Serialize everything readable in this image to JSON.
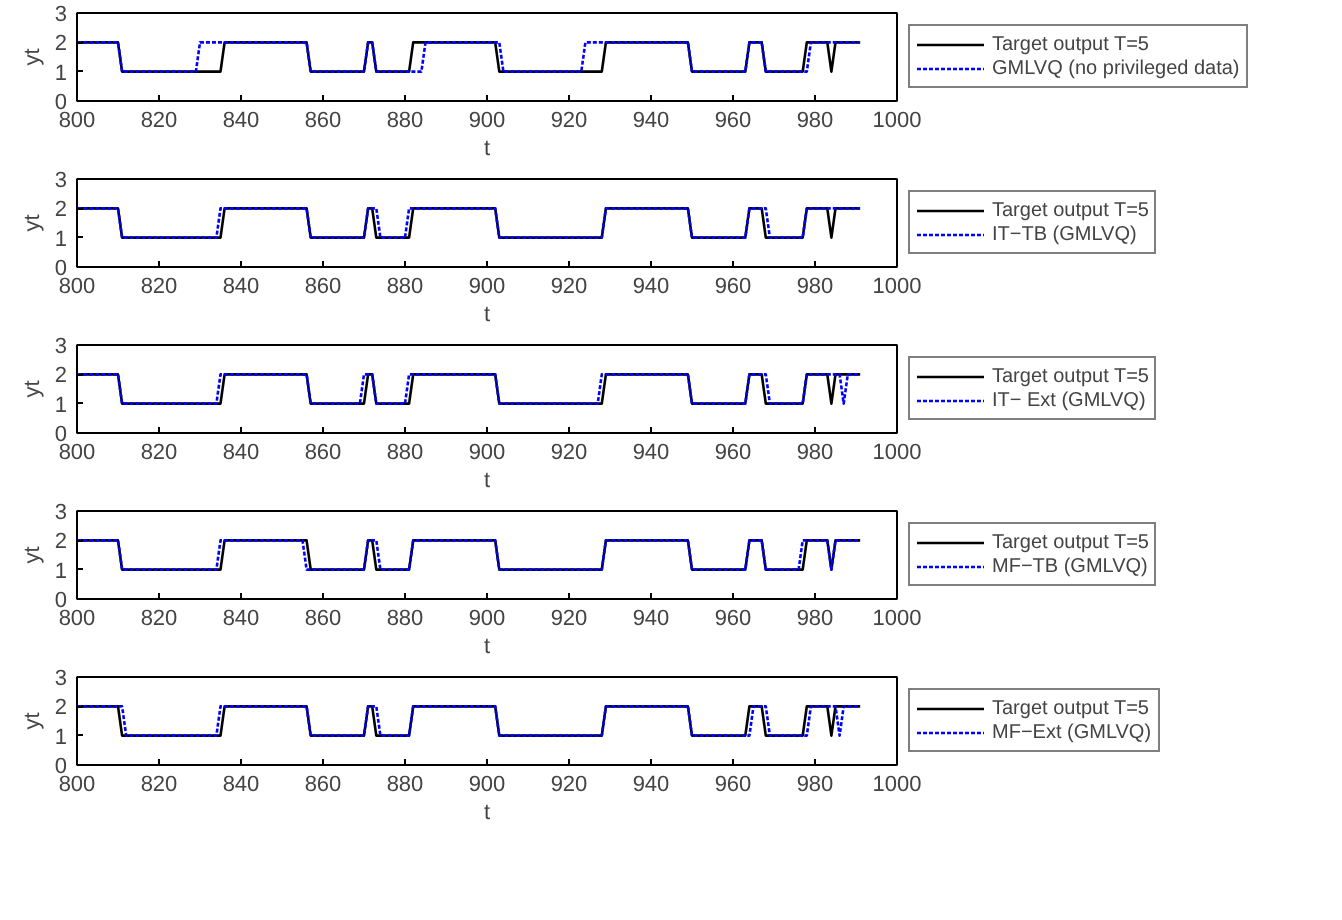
{
  "chart_data": [
    {
      "type": "line",
      "xlabel": "t",
      "ylabel": "yt",
      "xlim": [
        800,
        1000
      ],
      "xticks": [
        800,
        820,
        840,
        860,
        880,
        900,
        920,
        940,
        960,
        980,
        1000
      ],
      "ylim": [
        0,
        3
      ],
      "yticks": [
        0,
        1,
        2,
        3
      ],
      "grid": false,
      "legend": "right",
      "series": [
        {
          "name": "Target output T=5",
          "color": "#000000",
          "line_style": "solid",
          "x": [
            800,
            810,
            811,
            835,
            836,
            856,
            857,
            870,
            871,
            872,
            873,
            881,
            882,
            902,
            903,
            928,
            929,
            949,
            950,
            963,
            964,
            967,
            968,
            977,
            978,
            983,
            984,
            985,
            991
          ],
          "values": [
            2,
            2,
            1,
            1,
            2,
            2,
            1,
            1,
            2,
            2,
            1,
            1,
            2,
            2,
            1,
            1,
            2,
            2,
            1,
            1,
            2,
            2,
            1,
            1,
            2,
            2,
            1,
            2,
            2
          ]
        },
        {
          "name": "GMLVQ (no privileged data)",
          "color": "#0000ff",
          "line_style": "dotted",
          "x": [
            800,
            810,
            811,
            829,
            830,
            856,
            857,
            870,
            871,
            872,
            873,
            884,
            885,
            903,
            904,
            923,
            924,
            949,
            950,
            963,
            964,
            967,
            968,
            978,
            979,
            991
          ],
          "values": [
            2,
            2,
            1,
            1,
            2,
            2,
            1,
            1,
            2,
            2,
            1,
            1,
            2,
            2,
            1,
            1,
            2,
            2,
            1,
            1,
            2,
            2,
            1,
            1,
            2,
            2
          ]
        }
      ]
    },
    {
      "type": "line",
      "xlabel": "t",
      "ylabel": "yt",
      "xlim": [
        800,
        1000
      ],
      "xticks": [
        800,
        820,
        840,
        860,
        880,
        900,
        920,
        940,
        960,
        980,
        1000
      ],
      "ylim": [
        0,
        3
      ],
      "yticks": [
        0,
        1,
        2,
        3
      ],
      "grid": false,
      "legend": "right",
      "series": [
        {
          "name": "Target output T=5",
          "color": "#000000",
          "line_style": "solid",
          "x": [
            800,
            810,
            811,
            835,
            836,
            856,
            857,
            870,
            871,
            872,
            873,
            881,
            882,
            902,
            903,
            928,
            929,
            949,
            950,
            963,
            964,
            967,
            968,
            977,
            978,
            983,
            984,
            985,
            991
          ],
          "values": [
            2,
            2,
            1,
            1,
            2,
            2,
            1,
            1,
            2,
            2,
            1,
            1,
            2,
            2,
            1,
            1,
            2,
            2,
            1,
            1,
            2,
            2,
            1,
            1,
            2,
            2,
            1,
            2,
            2
          ]
        },
        {
          "name": "IT−TB (GMLVQ)",
          "color": "#0000ff",
          "line_style": "dotted",
          "x": [
            800,
            810,
            811,
            834,
            835,
            856,
            857,
            870,
            871,
            873,
            874,
            880,
            881,
            902,
            903,
            928,
            929,
            949,
            950,
            963,
            964,
            968,
            969,
            977,
            978,
            991
          ],
          "values": [
            2,
            2,
            1,
            1,
            2,
            2,
            1,
            1,
            2,
            2,
            1,
            1,
            2,
            2,
            1,
            1,
            2,
            2,
            1,
            1,
            2,
            2,
            1,
            1,
            2,
            2
          ]
        }
      ]
    },
    {
      "type": "line",
      "xlabel": "t",
      "ylabel": "yt",
      "xlim": [
        800,
        1000
      ],
      "xticks": [
        800,
        820,
        840,
        860,
        880,
        900,
        920,
        940,
        960,
        980,
        1000
      ],
      "ylim": [
        0,
        3
      ],
      "yticks": [
        0,
        1,
        2,
        3
      ],
      "grid": false,
      "legend": "right",
      "series": [
        {
          "name": "Target output T=5",
          "color": "#000000",
          "line_style": "solid",
          "x": [
            800,
            810,
            811,
            835,
            836,
            856,
            857,
            870,
            871,
            872,
            873,
            881,
            882,
            902,
            903,
            928,
            929,
            949,
            950,
            963,
            964,
            967,
            968,
            977,
            978,
            983,
            984,
            985,
            991
          ],
          "values": [
            2,
            2,
            1,
            1,
            2,
            2,
            1,
            1,
            2,
            2,
            1,
            1,
            2,
            2,
            1,
            1,
            2,
            2,
            1,
            1,
            2,
            2,
            1,
            1,
            2,
            2,
            1,
            2,
            2
          ]
        },
        {
          "name": "IT− Ext (GMLVQ)",
          "color": "#0000ff",
          "line_style": "dotted",
          "x": [
            800,
            810,
            811,
            834,
            835,
            856,
            857,
            869,
            870,
            872,
            873,
            880,
            881,
            902,
            903,
            927,
            928,
            949,
            950,
            963,
            964,
            968,
            969,
            977,
            978,
            986,
            987,
            988,
            991
          ],
          "values": [
            2,
            2,
            1,
            1,
            2,
            2,
            1,
            1,
            2,
            2,
            1,
            1,
            2,
            2,
            1,
            1,
            2,
            2,
            1,
            1,
            2,
            2,
            1,
            1,
            2,
            2,
            1,
            2,
            2
          ]
        }
      ]
    },
    {
      "type": "line",
      "xlabel": "t",
      "ylabel": "yt",
      "xlim": [
        800,
        1000
      ],
      "xticks": [
        800,
        820,
        840,
        860,
        880,
        900,
        920,
        940,
        960,
        980,
        1000
      ],
      "ylim": [
        0,
        3
      ],
      "yticks": [
        0,
        1,
        2,
        3
      ],
      "grid": false,
      "legend": "right",
      "series": [
        {
          "name": "Target output T=5",
          "color": "#000000",
          "line_style": "solid",
          "x": [
            800,
            810,
            811,
            835,
            836,
            856,
            857,
            870,
            871,
            872,
            873,
            881,
            882,
            902,
            903,
            928,
            929,
            949,
            950,
            963,
            964,
            967,
            968,
            977,
            978,
            983,
            984,
            985,
            991
          ],
          "values": [
            2,
            2,
            1,
            1,
            2,
            2,
            1,
            1,
            2,
            2,
            1,
            1,
            2,
            2,
            1,
            1,
            2,
            2,
            1,
            1,
            2,
            2,
            1,
            1,
            2,
            2,
            1,
            2,
            2
          ]
        },
        {
          "name": "MF−TB (GMLVQ)",
          "color": "#0000ff",
          "line_style": "dotted",
          "x": [
            800,
            810,
            811,
            834,
            835,
            855,
            856,
            870,
            871,
            873,
            874,
            881,
            882,
            902,
            903,
            928,
            929,
            949,
            950,
            963,
            964,
            967,
            968,
            976,
            977,
            983,
            984,
            985,
            991
          ],
          "values": [
            2,
            2,
            1,
            1,
            2,
            2,
            1,
            1,
            2,
            2,
            1,
            1,
            2,
            2,
            1,
            1,
            2,
            2,
            1,
            1,
            2,
            2,
            1,
            1,
            2,
            2,
            1,
            2,
            2
          ]
        }
      ]
    },
    {
      "type": "line",
      "xlabel": "t",
      "ylabel": "yt",
      "xlim": [
        800,
        1000
      ],
      "xticks": [
        800,
        820,
        840,
        860,
        880,
        900,
        920,
        940,
        960,
        980,
        1000
      ],
      "ylim": [
        0,
        3
      ],
      "yticks": [
        0,
        1,
        2,
        3
      ],
      "grid": false,
      "legend": "right",
      "series": [
        {
          "name": "Target output T=5",
          "color": "#000000",
          "line_style": "solid",
          "x": [
            800,
            810,
            811,
            835,
            836,
            856,
            857,
            870,
            871,
            872,
            873,
            881,
            882,
            902,
            903,
            928,
            929,
            949,
            950,
            963,
            964,
            967,
            968,
            977,
            978,
            983,
            984,
            985,
            991
          ],
          "values": [
            2,
            2,
            1,
            1,
            2,
            2,
            1,
            1,
            2,
            2,
            1,
            1,
            2,
            2,
            1,
            1,
            2,
            2,
            1,
            1,
            2,
            2,
            1,
            1,
            2,
            2,
            1,
            2,
            2
          ]
        },
        {
          "name": "MF−Ext (GMLVQ)",
          "color": "#0000ff",
          "line_style": "dotted",
          "x": [
            800,
            811,
            812,
            834,
            835,
            856,
            857,
            870,
            871,
            873,
            874,
            881,
            882,
            902,
            903,
            928,
            929,
            949,
            950,
            964,
            965,
            968,
            969,
            978,
            979,
            985,
            986,
            987,
            991
          ],
          "values": [
            2,
            2,
            1,
            1,
            2,
            2,
            1,
            1,
            2,
            2,
            1,
            1,
            2,
            2,
            1,
            1,
            2,
            2,
            1,
            1,
            2,
            2,
            1,
            1,
            2,
            2,
            1,
            2,
            2
          ]
        }
      ]
    }
  ]
}
